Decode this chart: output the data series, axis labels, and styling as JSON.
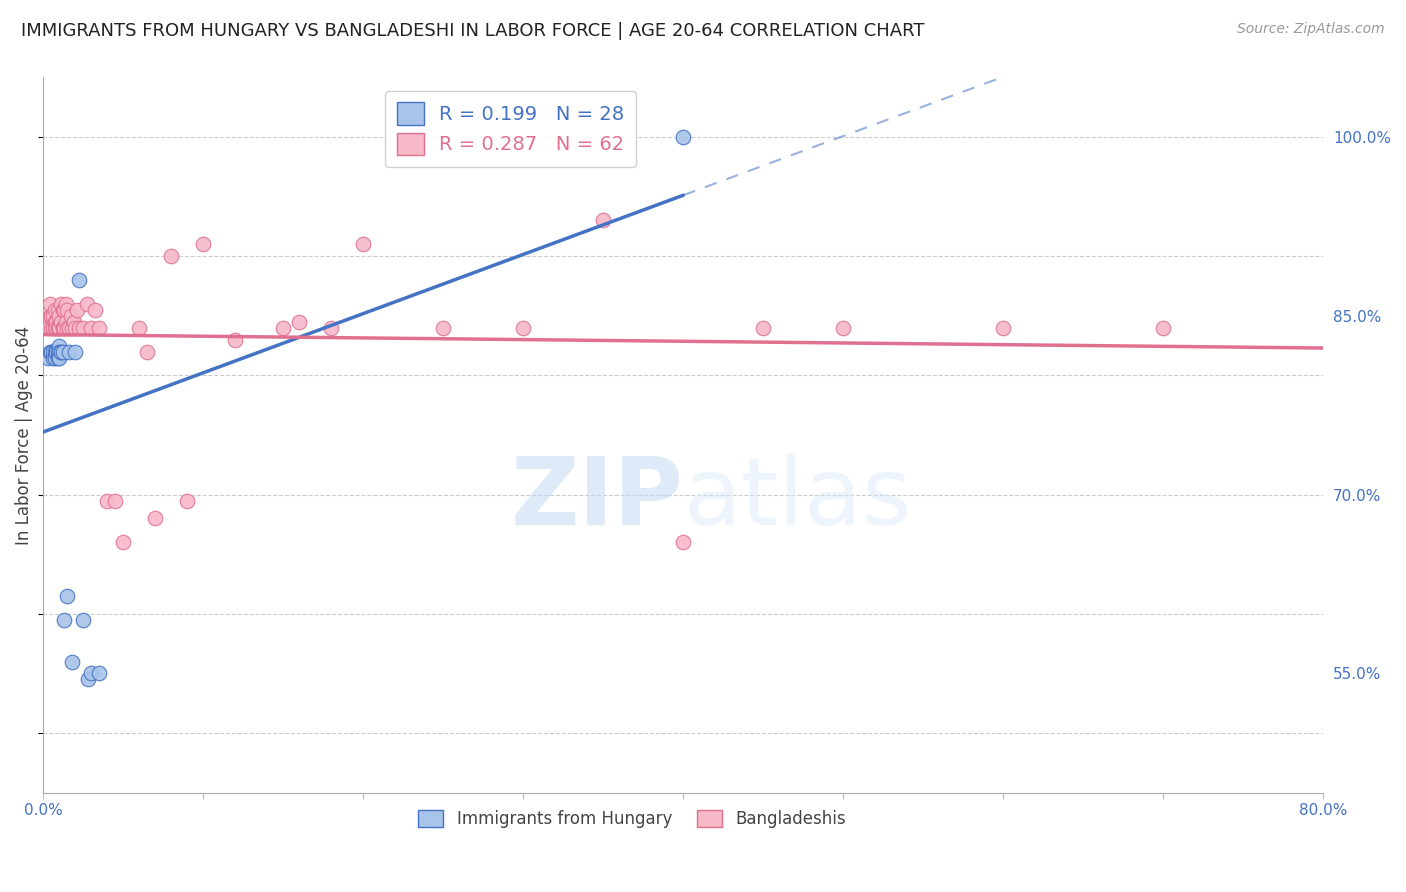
{
  "title": "IMMIGRANTS FROM HUNGARY VS BANGLADESHI IN LABOR FORCE | AGE 20-64 CORRELATION CHART",
  "source": "Source: ZipAtlas.com",
  "ylabel": "In Labor Force | Age 20-64",
  "xlim": [
    0.0,
    0.8
  ],
  "ylim": [
    0.45,
    1.05
  ],
  "x_ticks": [
    0.0,
    0.1,
    0.2,
    0.3,
    0.4,
    0.5,
    0.6,
    0.7,
    0.8
  ],
  "y_ticks_right": [
    0.55,
    0.7,
    0.85,
    1.0
  ],
  "y_tick_labels_right": [
    "55.0%",
    "70.0%",
    "85.0%",
    "100.0%"
  ],
  "watermark_zip": "ZIP",
  "watermark_atlas": "atlas",
  "legend_r_hungary": "0.199",
  "legend_n_hungary": "28",
  "legend_r_bangladeshi": "0.287",
  "legend_n_bangladeshi": "62",
  "hungary_fill_color": "#a8c4e8",
  "hungary_edge_color": "#4472c4",
  "bangladeshi_fill_color": "#f7b8c8",
  "bangladeshi_edge_color": "#e07090",
  "hungary_line_color": "#4472c4",
  "bangladeshi_line_color": "#e07090",
  "background_color": "#ffffff",
  "grid_color": "#cccccc",
  "hungary_x": [
    0.003,
    0.004,
    0.005,
    0.006,
    0.006,
    0.007,
    0.007,
    0.008,
    0.008,
    0.009,
    0.009,
    0.01,
    0.01,
    0.01,
    0.011,
    0.011,
    0.012,
    0.013,
    0.015,
    0.016,
    0.018,
    0.02,
    0.022,
    0.025,
    0.028,
    0.03,
    0.035,
    0.4
  ],
  "hungary_y": [
    0.815,
    0.82,
    0.82,
    0.815,
    0.82,
    0.82,
    0.815,
    0.82,
    0.82,
    0.82,
    0.815,
    0.825,
    0.82,
    0.815,
    0.82,
    0.82,
    0.82,
    0.595,
    0.615,
    0.82,
    0.56,
    0.82,
    0.88,
    0.595,
    0.545,
    0.55,
    0.55,
    1.0
  ],
  "bangladeshi_x": [
    0.003,
    0.004,
    0.004,
    0.005,
    0.005,
    0.006,
    0.006,
    0.007,
    0.007,
    0.007,
    0.008,
    0.008,
    0.009,
    0.009,
    0.01,
    0.01,
    0.01,
    0.011,
    0.011,
    0.012,
    0.012,
    0.012,
    0.013,
    0.013,
    0.014,
    0.014,
    0.015,
    0.015,
    0.016,
    0.017,
    0.018,
    0.019,
    0.02,
    0.021,
    0.022,
    0.025,
    0.027,
    0.03,
    0.032,
    0.035,
    0.04,
    0.045,
    0.05,
    0.06,
    0.065,
    0.07,
    0.08,
    0.09,
    0.1,
    0.12,
    0.15,
    0.16,
    0.18,
    0.2,
    0.25,
    0.3,
    0.35,
    0.4,
    0.45,
    0.5,
    0.6,
    0.7
  ],
  "bangladeshi_y": [
    0.84,
    0.85,
    0.86,
    0.84,
    0.85,
    0.84,
    0.85,
    0.845,
    0.84,
    0.855,
    0.845,
    0.84,
    0.84,
    0.855,
    0.84,
    0.85,
    0.84,
    0.845,
    0.86,
    0.84,
    0.855,
    0.84,
    0.84,
    0.855,
    0.845,
    0.86,
    0.84,
    0.855,
    0.84,
    0.85,
    0.84,
    0.845,
    0.84,
    0.855,
    0.84,
    0.84,
    0.86,
    0.84,
    0.855,
    0.84,
    0.695,
    0.695,
    0.66,
    0.84,
    0.82,
    0.68,
    0.9,
    0.695,
    0.91,
    0.83,
    0.84,
    0.845,
    0.84,
    0.91,
    0.84,
    0.84,
    0.93,
    0.66,
    0.84,
    0.84,
    0.84,
    0.84
  ],
  "title_fontsize": 13,
  "source_fontsize": 10,
  "tick_fontsize": 11,
  "legend_fontsize": 14,
  "ylabel_fontsize": 12
}
